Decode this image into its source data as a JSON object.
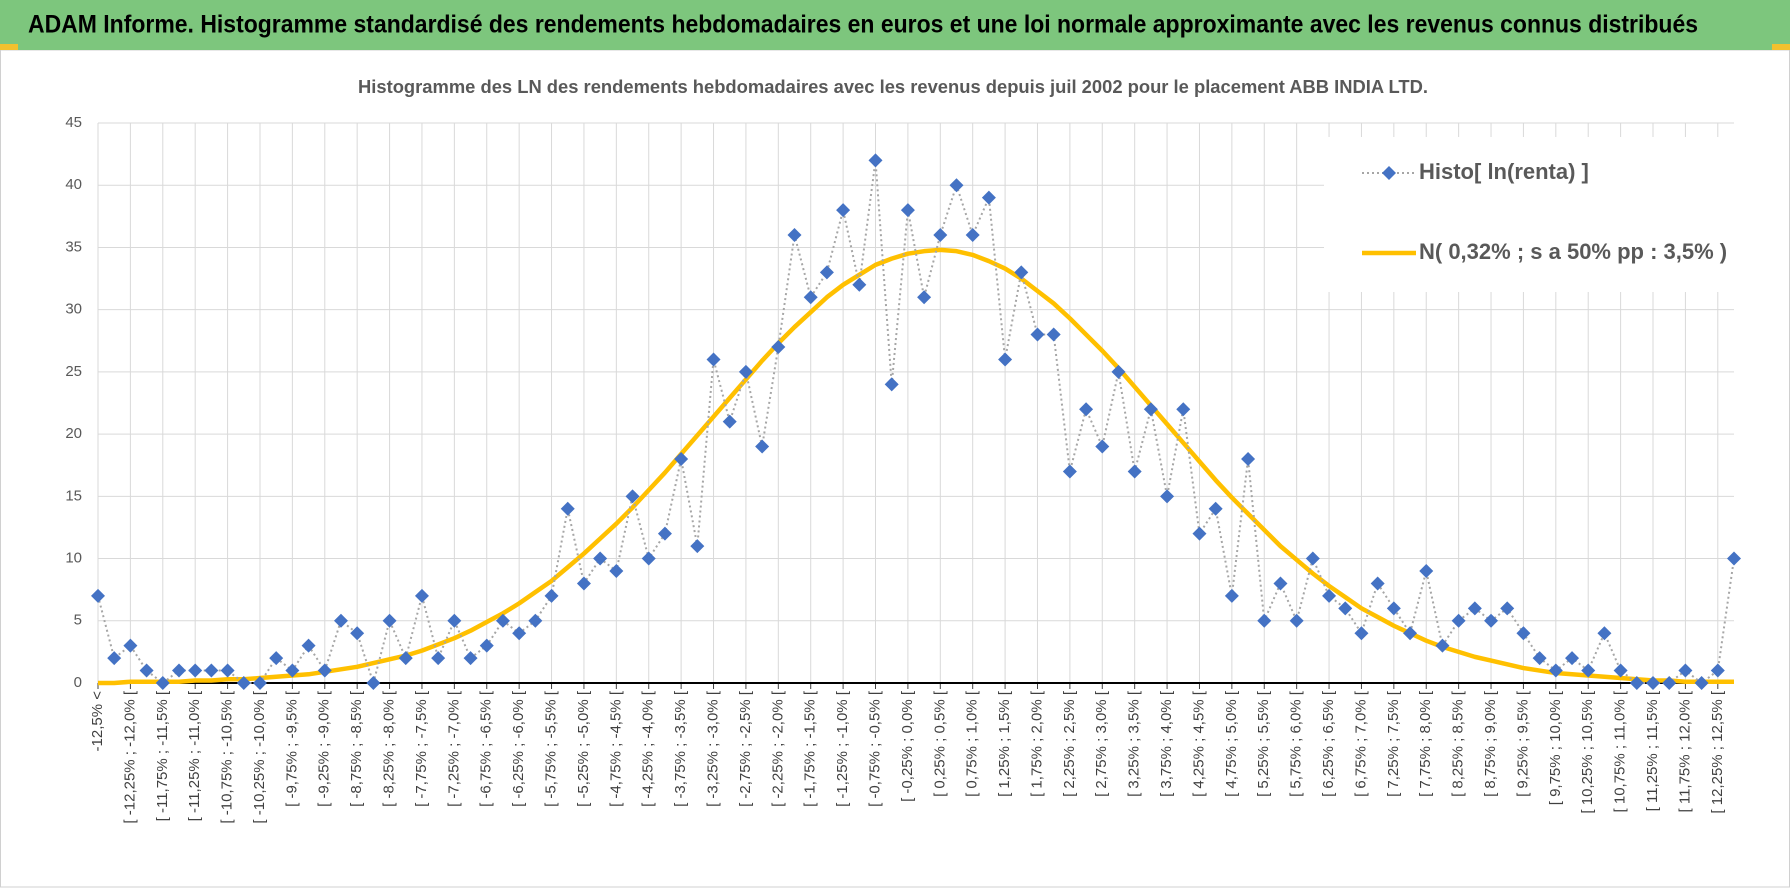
{
  "chart_data": {
    "type": "line",
    "header": "ADAM Informe. Histogramme standardisé des rendements hebdomadaires en euros et une loi normale approximante avec les revenus connus distribués",
    "title": "Histogramme des LN des rendements hebdomadaires avec les revenus depuis juil 2002 pour le placement ABB INDIA LTD.",
    "categories": [
      "-12,5% <",
      null,
      "[ -12,25% ; -12,0% [",
      null,
      "[ -11,75% ; -11,5% [",
      null,
      "[ -11,25% ; -11,0% [",
      null,
      "[ -10,75% ; -10,5% [",
      null,
      "[ -10,25% ; -10,0% [",
      null,
      "[ -9,75% ; -9,5% [",
      null,
      "[ -9,25% ; -9,0% [",
      null,
      "[ -8,75% ; -8,5% [",
      null,
      "[ -8,25% ; -8,0% [",
      null,
      "[ -7,75% ; -7,5% [",
      null,
      "[ -7,25% ; -7,0% [",
      null,
      "[ -6,75% ; -6,5% [",
      null,
      "[ -6,25% ; -6,0% [",
      null,
      "[ -5,75% ; -5,5% [",
      null,
      "[ -5,25% ; -5,0% [",
      null,
      "[ -4,75% ; -4,5% [",
      null,
      "[ -4,25% ; -4,0% [",
      null,
      "[ -3,75% ; -3,5% [",
      null,
      "[ -3,25% ; -3,0% [",
      null,
      "[ -2,75% ; -2,5% [",
      null,
      "[ -2,25% ; -2,0% [",
      null,
      "[ -1,75% ; -1,5% [",
      null,
      "[ -1,25% ; -1,0% [",
      null,
      "[ -0,75% ; -0,5% [",
      null,
      "[ -0,25% ; 0,0% [",
      null,
      "[ 0,25% ; 0,5% [",
      null,
      "[ 0,75% ; 1,0% [",
      null,
      "[ 1,25% ; 1,5% [",
      null,
      "[ 1,75% ; 2,0% [",
      null,
      "[ 2,25% ; 2,5% [",
      null,
      "[ 2,75% ; 3,0% [",
      null,
      "[ 3,25% ; 3,5% [",
      null,
      "[ 3,75% ; 4,0% [",
      null,
      "[ 4,25% ; 4,5% [",
      null,
      "[ 4,75% ; 5,0% [",
      null,
      "[ 5,25% ; 5,5% [",
      null,
      "[ 5,75% ; 6,0% [",
      null,
      "[ 6,25% ; 6,5% [",
      null,
      "[ 6,75% ; 7,0% [",
      null,
      "[ 7,25% ; 7,5% [",
      null,
      "[ 7,75% ; 8,0% [",
      null,
      "[ 8,25% ; 8,5% [",
      null,
      "[ 8,75% ; 9,0% [",
      null,
      "[ 9,25% ; 9,5% [",
      null,
      "[ 9,75% ; 10,0% [",
      null,
      "[ 10,25% ; 10,5% [",
      null,
      "[ 10,75% ; 11,0% [",
      null,
      "[ 11,25% ; 11,5% [",
      null,
      "[ 11,75% ; 12,0% [",
      null,
      "[ 12,25% ; 12,5% [",
      null
    ],
    "series": [
      {
        "name": "Histo[ ln(renta) ]",
        "color": "#4472c4",
        "line_color": "#a6a6a6",
        "line_style": "dotted",
        "values": [
          7,
          2,
          3,
          1,
          0,
          1,
          1,
          1,
          1,
          0,
          0,
          2,
          1,
          3,
          1,
          5,
          4,
          0,
          5,
          2,
          7,
          2,
          5,
          2,
          3,
          5,
          4,
          5,
          7,
          14,
          8,
          10,
          9,
          15,
          10,
          12,
          18,
          11,
          26,
          21,
          25,
          19,
          27,
          36,
          31,
          33,
          38,
          32,
          42,
          24,
          38,
          31,
          36,
          40,
          36,
          39,
          26,
          33,
          28,
          28,
          17,
          22,
          19,
          25,
          17,
          22,
          15,
          22,
          12,
          14,
          7,
          18,
          5,
          8,
          5,
          10,
          7,
          6,
          4,
          8,
          6,
          4,
          9,
          3,
          5,
          6,
          5,
          6,
          4,
          2,
          1,
          2,
          1,
          4,
          1,
          0,
          0,
          0,
          1,
          0,
          1,
          10
        ]
      },
      {
        "name": "N( 0,32% ; s a 50% pp : 3,5% )",
        "color": "#ffc000",
        "line_style": "solid",
        "values": [
          0.0,
          0.0,
          0.1,
          0.1,
          0.1,
          0.1,
          0.2,
          0.2,
          0.3,
          0.3,
          0.4,
          0.5,
          0.6,
          0.7,
          0.9,
          1.1,
          1.3,
          1.6,
          1.9,
          2.2,
          2.6,
          3.1,
          3.6,
          4.2,
          4.9,
          5.6,
          6.4,
          7.3,
          8.2,
          9.3,
          10.4,
          11.6,
          12.8,
          14.1,
          15.5,
          16.9,
          18.4,
          19.9,
          21.4,
          22.9,
          24.4,
          25.9,
          27.3,
          28.6,
          29.8,
          31.0,
          32.0,
          32.8,
          33.6,
          34.1,
          34.5,
          34.7,
          34.8,
          34.7,
          34.4,
          33.9,
          33.3,
          32.5,
          31.5,
          30.5,
          29.3,
          28.0,
          26.7,
          25.3,
          23.8,
          22.3,
          20.8,
          19.3,
          17.8,
          16.3,
          14.9,
          13.6,
          12.3,
          11.0,
          9.9,
          8.8,
          7.8,
          6.9,
          6.0,
          5.3,
          4.6,
          4.0,
          3.4,
          2.9,
          2.5,
          2.1,
          1.8,
          1.5,
          1.2,
          1.0,
          0.8,
          0.7,
          0.6,
          0.5,
          0.4,
          0.3,
          0.2,
          0.2,
          0.1,
          0.1,
          0.1,
          0.1
        ]
      }
    ],
    "ylim": [
      0,
      45
    ],
    "yticks": [
      0,
      5,
      10,
      15,
      20,
      25,
      30,
      35,
      40,
      45
    ],
    "grid": true,
    "legend": "upper right"
  }
}
